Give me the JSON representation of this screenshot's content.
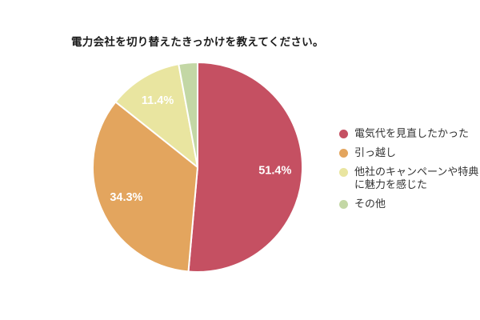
{
  "page": {
    "background_color": "#ffffff"
  },
  "chart_data": {
    "type": "pie",
    "title": "電力会社を切り替えたきっかけを教えてください。",
    "unit": "%",
    "direction": "clockwise",
    "start_angle_deg": 0,
    "legend_position": "right",
    "slice_border_color": "#ffffff",
    "slices": [
      {
        "label": "電気代を見直したかった",
        "value": 51.4,
        "pct_label": "51.4%",
        "color": "#c55062"
      },
      {
        "label": "引っ越し",
        "value": 34.3,
        "pct_label": "34.3%",
        "color": "#e3a55e"
      },
      {
        "label": "他社のキャンペーンや特典に魅力を感じた",
        "value": 11.4,
        "pct_label": "11.4%",
        "color": "#e9e5a0"
      },
      {
        "label": "その他",
        "value": 2.9,
        "pct_label": "",
        "color": "#c3d7a5"
      }
    ]
  }
}
